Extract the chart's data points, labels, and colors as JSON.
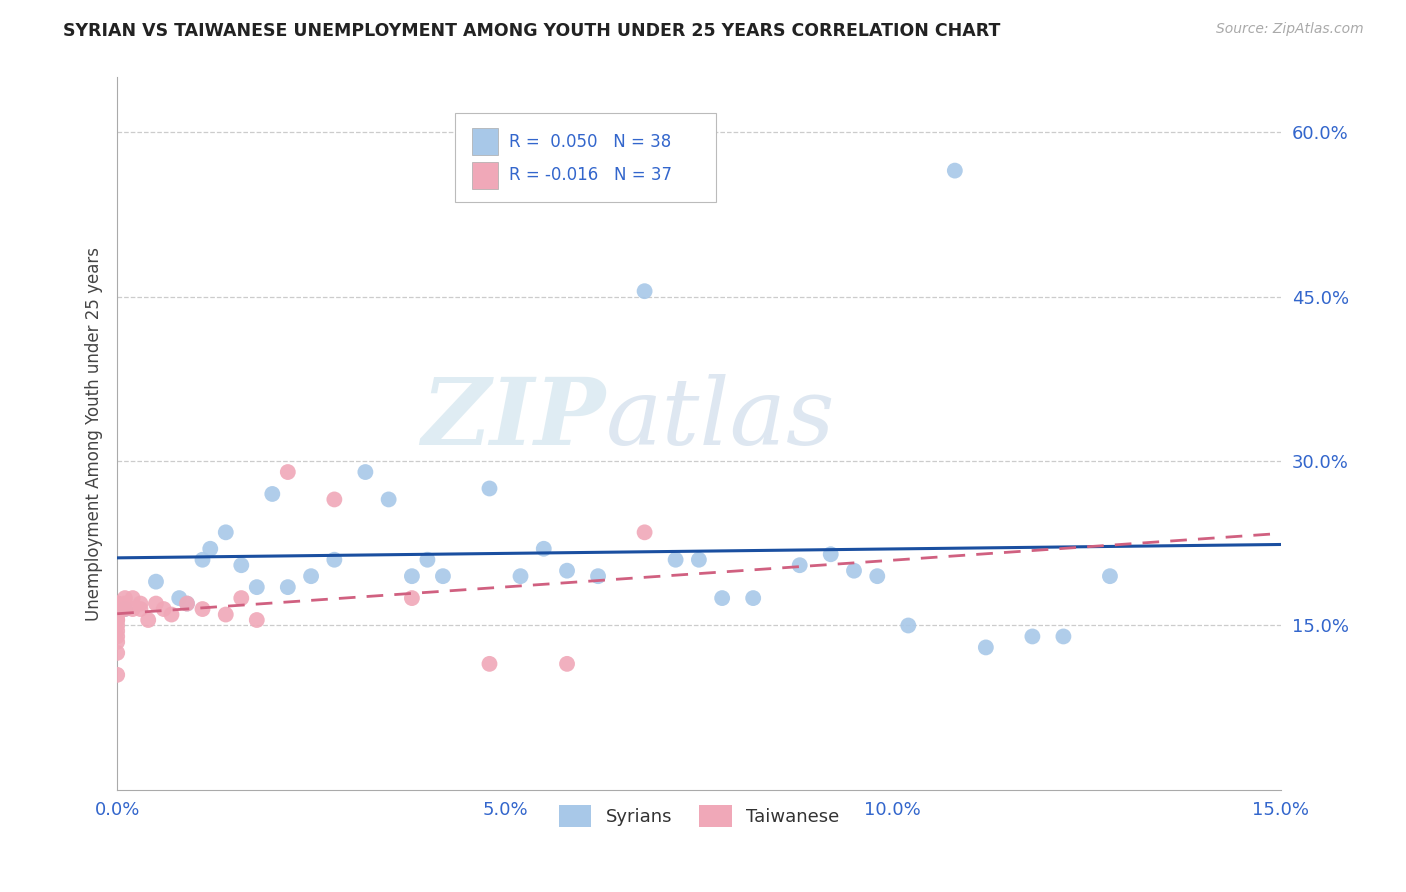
{
  "title": "SYRIAN VS TAIWANESE UNEMPLOYMENT AMONG YOUTH UNDER 25 YEARS CORRELATION CHART",
  "source": "Source: ZipAtlas.com",
  "ylabel": "Unemployment Among Youth under 25 years",
  "xlim": [
    0.0,
    0.15
  ],
  "ylim": [
    0.0,
    0.65
  ],
  "xticks": [
    0.0,
    0.05,
    0.1,
    0.15
  ],
  "xtick_labels": [
    "0.0%",
    "5.0%",
    "10.0%",
    "15.0%"
  ],
  "yticks": [
    0.15,
    0.3,
    0.45,
    0.6
  ],
  "ytick_labels": [
    "15.0%",
    "30.0%",
    "45.0%",
    "60.0%"
  ],
  "legend_labels": [
    "Syrians",
    "Taiwanese"
  ],
  "blue_color": "#a8c8e8",
  "pink_color": "#f0a8b8",
  "blue_line_color": "#1a4fa0",
  "pink_line_color": "#d06080",
  "watermark_zip": "ZIP",
  "watermark_atlas": "atlas",
  "R_syrian": 0.05,
  "N_syrian": 38,
  "R_taiwanese": -0.016,
  "N_taiwanese": 37,
  "syrian_x": [
    0.001,
    0.005,
    0.008,
    0.009,
    0.011,
    0.012,
    0.014,
    0.016,
    0.018,
    0.02,
    0.022,
    0.025,
    0.028,
    0.032,
    0.035,
    0.038,
    0.04,
    0.042,
    0.048,
    0.052,
    0.055,
    0.058,
    0.062,
    0.068,
    0.072,
    0.075,
    0.078,
    0.082,
    0.088,
    0.092,
    0.095,
    0.098,
    0.102,
    0.108,
    0.112,
    0.118,
    0.122,
    0.128
  ],
  "syrian_y": [
    0.165,
    0.19,
    0.175,
    0.17,
    0.21,
    0.22,
    0.235,
    0.205,
    0.185,
    0.27,
    0.185,
    0.195,
    0.21,
    0.29,
    0.265,
    0.195,
    0.21,
    0.195,
    0.275,
    0.195,
    0.22,
    0.2,
    0.195,
    0.455,
    0.21,
    0.21,
    0.175,
    0.175,
    0.205,
    0.215,
    0.2,
    0.195,
    0.15,
    0.565,
    0.13,
    0.14,
    0.14,
    0.195
  ],
  "taiwanese_x": [
    0.0,
    0.0,
    0.0,
    0.0,
    0.0,
    0.0,
    0.0,
    0.0,
    0.0,
    0.0,
    0.0,
    0.0,
    0.0,
    0.0,
    0.0,
    0.001,
    0.001,
    0.001,
    0.002,
    0.002,
    0.003,
    0.003,
    0.004,
    0.005,
    0.006,
    0.007,
    0.009,
    0.011,
    0.014,
    0.016,
    0.018,
    0.022,
    0.028,
    0.038,
    0.048,
    0.058,
    0.068
  ],
  "taiwanese_y": [
    0.17,
    0.17,
    0.165,
    0.16,
    0.155,
    0.15,
    0.145,
    0.14,
    0.135,
    0.125,
    0.105,
    0.17,
    0.165,
    0.16,
    0.155,
    0.175,
    0.17,
    0.165,
    0.175,
    0.165,
    0.17,
    0.165,
    0.155,
    0.17,
    0.165,
    0.16,
    0.17,
    0.165,
    0.16,
    0.175,
    0.155,
    0.29,
    0.265,
    0.175,
    0.115,
    0.115,
    0.235
  ]
}
